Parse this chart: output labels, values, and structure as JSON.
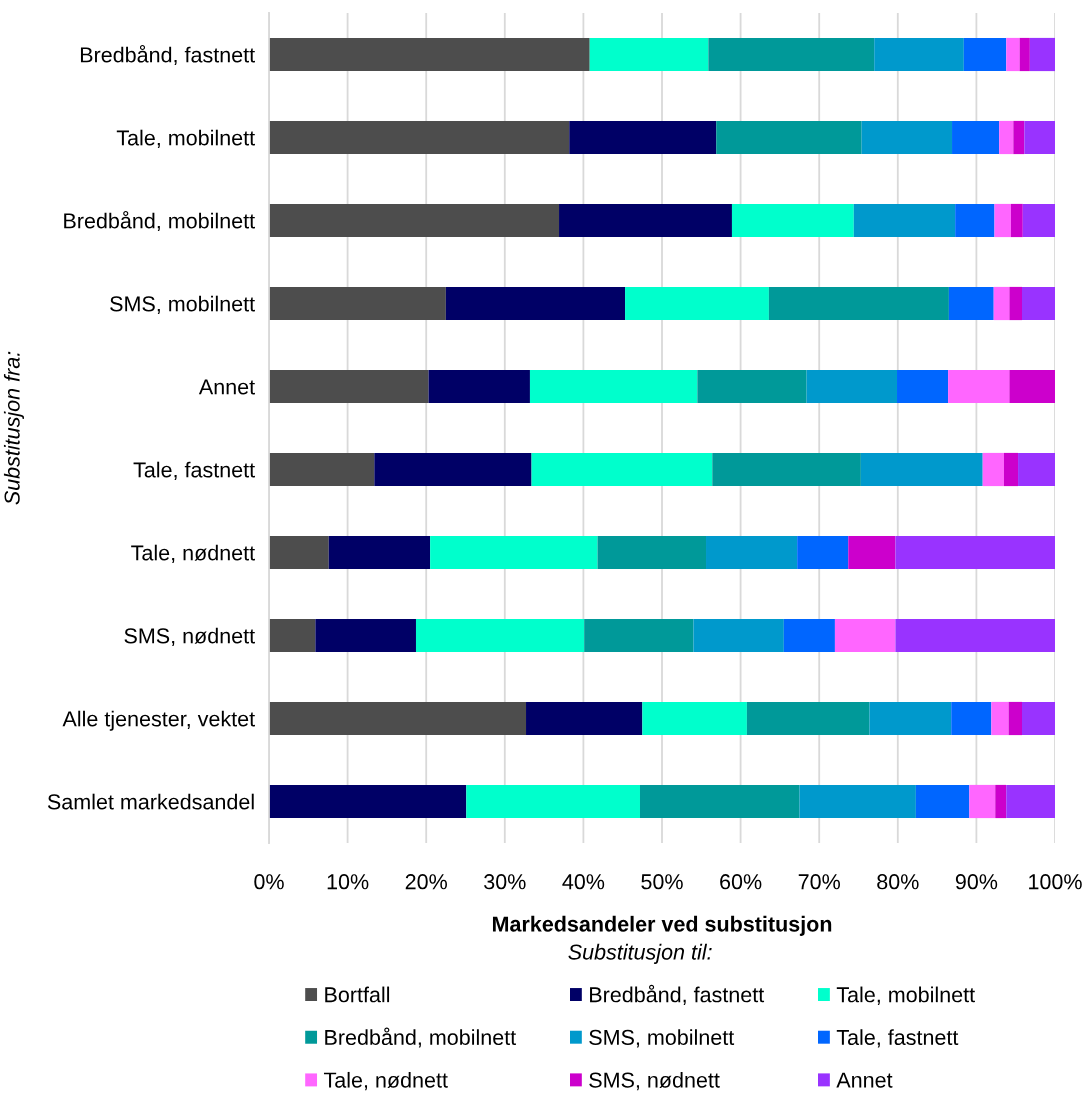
{
  "chart_data": {
    "type": "bar",
    "orientation": "horizontal",
    "stacked": true,
    "categories": [
      "Bredbånd, fastnett",
      "Tale, mobilnett",
      "Bredbånd, mobilnett",
      "SMS, mobilnett",
      "Annet",
      "Tale, fastnett",
      "Tale, nødnett",
      "SMS, nødnett",
      "Alle tjenester, vektet",
      "Samlet markedsandel"
    ],
    "series": [
      {
        "name": "Bortfall",
        "color": "#4d4d4d",
        "values": [
          40.8,
          38.2,
          36.9,
          22.5,
          20.3,
          13.4,
          7.6,
          5.9,
          32.7,
          null
        ]
      },
      {
        "name": "Bredbånd, fastnett",
        "color": "#000066",
        "values": [
          null,
          18.7,
          22.0,
          22.8,
          12.9,
          20.0,
          12.9,
          12.8,
          14.8,
          25.1
        ]
      },
      {
        "name": "Tale, mobilnett",
        "color": "#00ffcc",
        "values": [
          15.1,
          null,
          15.5,
          18.3,
          21.3,
          23.0,
          21.3,
          21.4,
          13.3,
          22.1
        ]
      },
      {
        "name": "Bredbånd, mobilnett",
        "color": "#009999",
        "values": [
          21.1,
          18.5,
          null,
          22.9,
          13.9,
          18.9,
          13.8,
          13.9,
          15.6,
          20.3
        ]
      },
      {
        "name": "SMS, mobilnett",
        "color": "#0099cc",
        "values": [
          11.4,
          11.5,
          12.9,
          null,
          11.5,
          15.5,
          11.6,
          11.5,
          10.4,
          14.8
        ]
      },
      {
        "name": "Tale, fastnett",
        "color": "#0066ff",
        "values": [
          5.4,
          6.0,
          5.0,
          5.7,
          6.5,
          null,
          6.5,
          6.5,
          5.1,
          6.8
        ]
      },
      {
        "name": "Tale, nødnett",
        "color": "#ff66ff",
        "values": [
          1.7,
          1.8,
          2.1,
          2.0,
          7.8,
          2.7,
          null,
          7.7,
          2.2,
          3.3
        ]
      },
      {
        "name": "SMS, nødnett",
        "color": "#cc00cc",
        "values": [
          1.3,
          1.4,
          1.5,
          1.6,
          5.8,
          1.8,
          6.0,
          null,
          1.7,
          1.4
        ]
      },
      {
        "name": "Annet",
        "color": "#9933ff",
        "values": [
          3.2,
          3.9,
          4.1,
          4.2,
          null,
          4.7,
          20.3,
          20.3,
          4.2,
          6.2
        ]
      }
    ],
    "xlim": [
      0,
      100
    ],
    "xticks": [
      {
        "value": 0,
        "label": "0%"
      },
      {
        "value": 10,
        "label": "10%"
      },
      {
        "value": 20,
        "label": "20%"
      },
      {
        "value": 30,
        "label": "30%"
      },
      {
        "value": 40,
        "label": "40%"
      },
      {
        "value": 50,
        "label": "50%"
      },
      {
        "value": 60,
        "label": "60%"
      },
      {
        "value": 70,
        "label": "70%"
      },
      {
        "value": 80,
        "label": "80%"
      },
      {
        "value": 90,
        "label": "90%"
      },
      {
        "value": 100,
        "label": "100%"
      }
    ],
    "xlabel": "Markedsandeler ved substitusjon",
    "ylabel": "Substitusjon fra:",
    "legend_title": "Substitusjon til:",
    "grid": "x",
    "legend": "bottom"
  }
}
